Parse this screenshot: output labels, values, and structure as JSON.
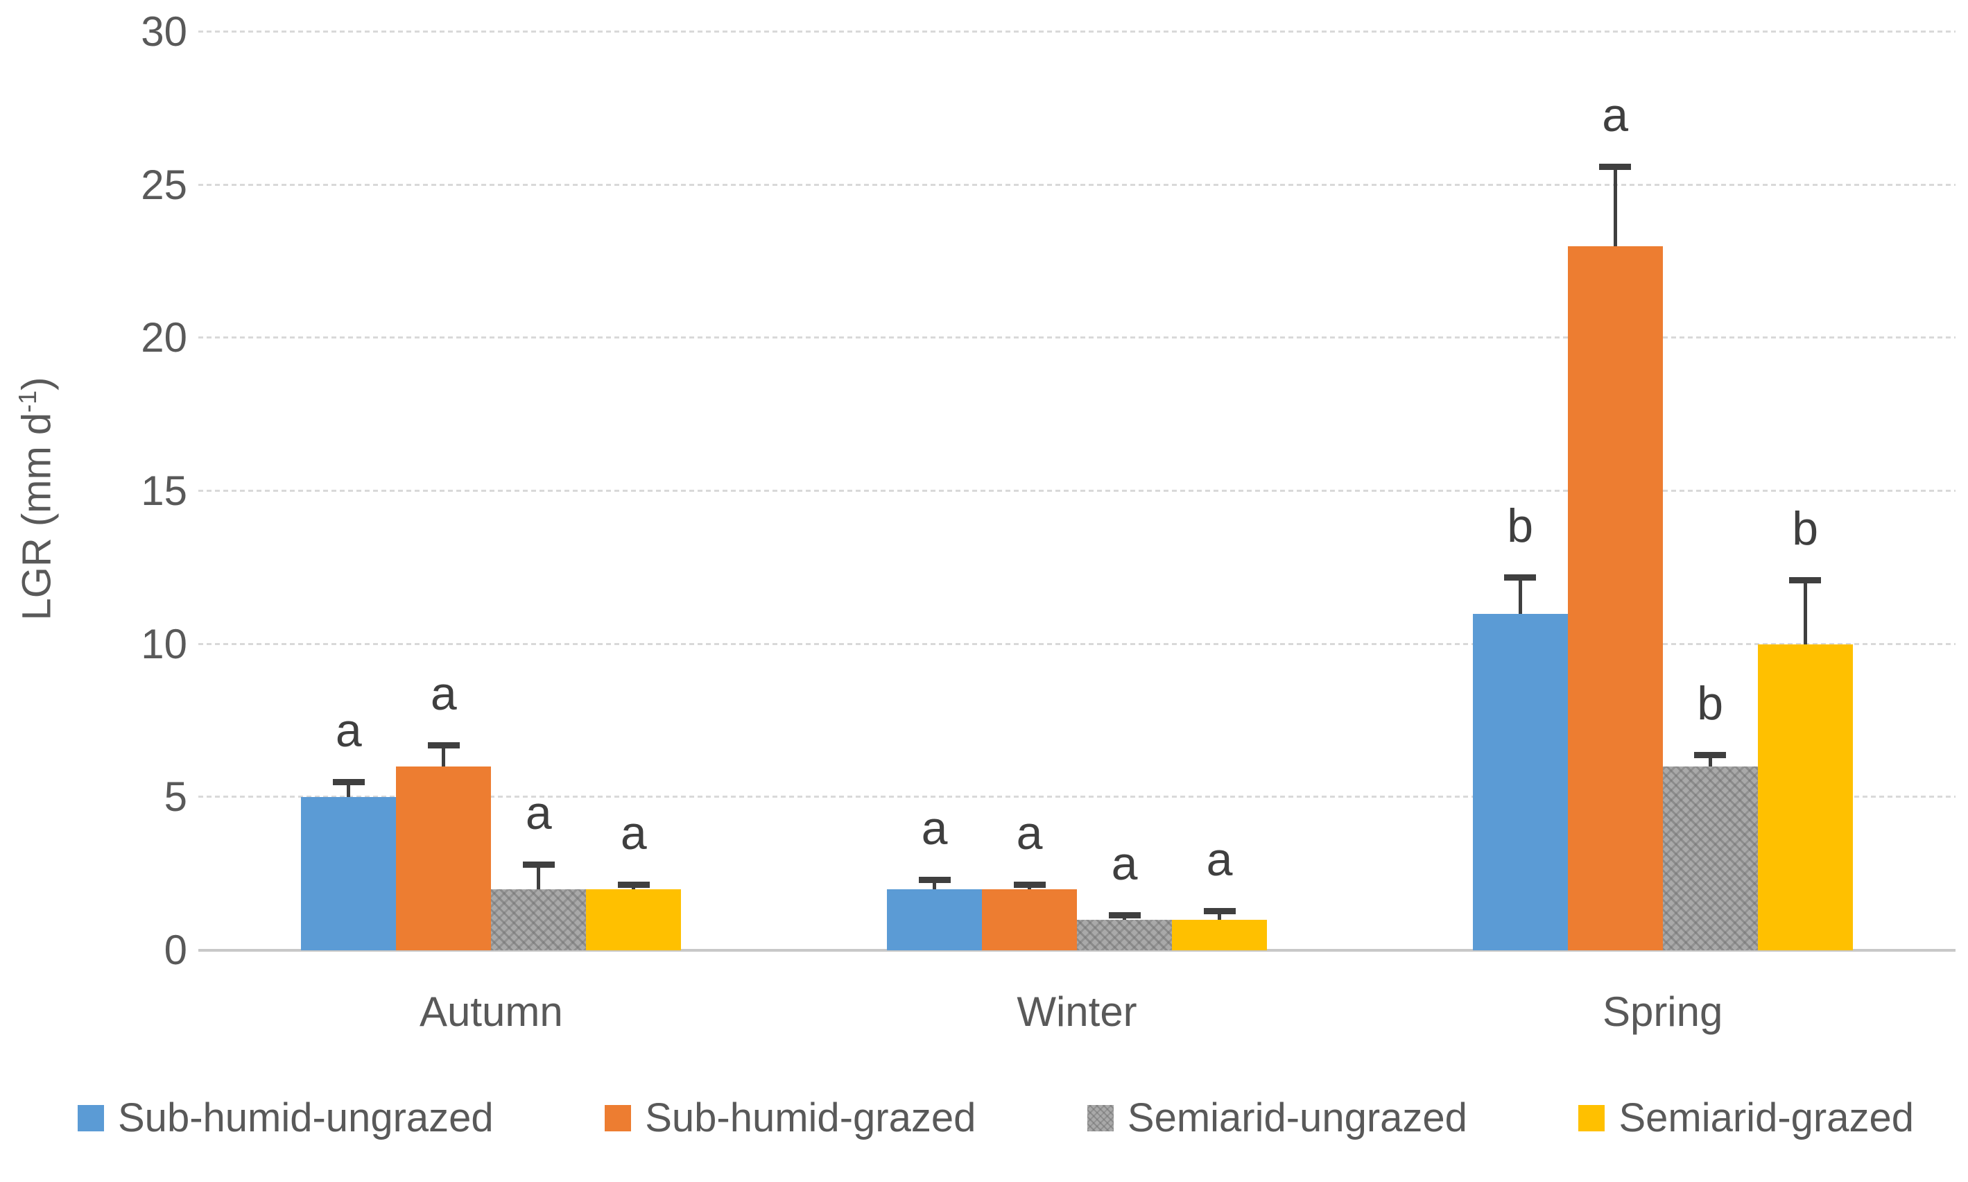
{
  "chart_data": {
    "type": "bar",
    "title": "",
    "ylabel_prefix": "LGR (mm d",
    "ylabel_sup": "-1",
    "ylabel_suffix": ")",
    "ylim": [
      0,
      30
    ],
    "yticks": [
      0,
      5,
      10,
      15,
      20,
      25,
      30
    ],
    "grid": true,
    "legend_position": "bottom",
    "categories": [
      "Autumn",
      "Winter",
      "Spring"
    ],
    "series": [
      {
        "name": "Sub-humid-ungrazed",
        "color": "#5B9BD5",
        "pattern": false,
        "values": [
          5,
          2,
          11
        ],
        "errors_plus": [
          0.5,
          0.3,
          1.2
        ],
        "sig_letters": [
          "a",
          "a",
          "b"
        ]
      },
      {
        "name": "Sub-humid-grazed",
        "color": "#ED7D31",
        "pattern": false,
        "values": [
          6,
          2,
          23
        ],
        "errors_plus": [
          0.7,
          0.15,
          2.6
        ],
        "sig_letters": [
          "a",
          "a",
          "a"
        ]
      },
      {
        "name": "Semiarid-ungrazed",
        "color": "#A9A9A9",
        "pattern": true,
        "values": [
          2,
          1,
          6
        ],
        "errors_plus": [
          0.8,
          0.15,
          0.4
        ],
        "sig_letters": [
          "a",
          "a",
          "b"
        ]
      },
      {
        "name": "Semiarid-grazed",
        "color": "#FFC000",
        "pattern": false,
        "values": [
          2,
          1,
          10
        ],
        "errors_plus": [
          0.15,
          0.3,
          2.1
        ],
        "sig_letters": [
          "a",
          "a",
          "b"
        ]
      }
    ],
    "style": {
      "gridline_color": "#D9D9D9",
      "axisline_color": "#C8C8C8",
      "text_color": "#595959",
      "annotation_color": "#3F3F3F"
    }
  }
}
